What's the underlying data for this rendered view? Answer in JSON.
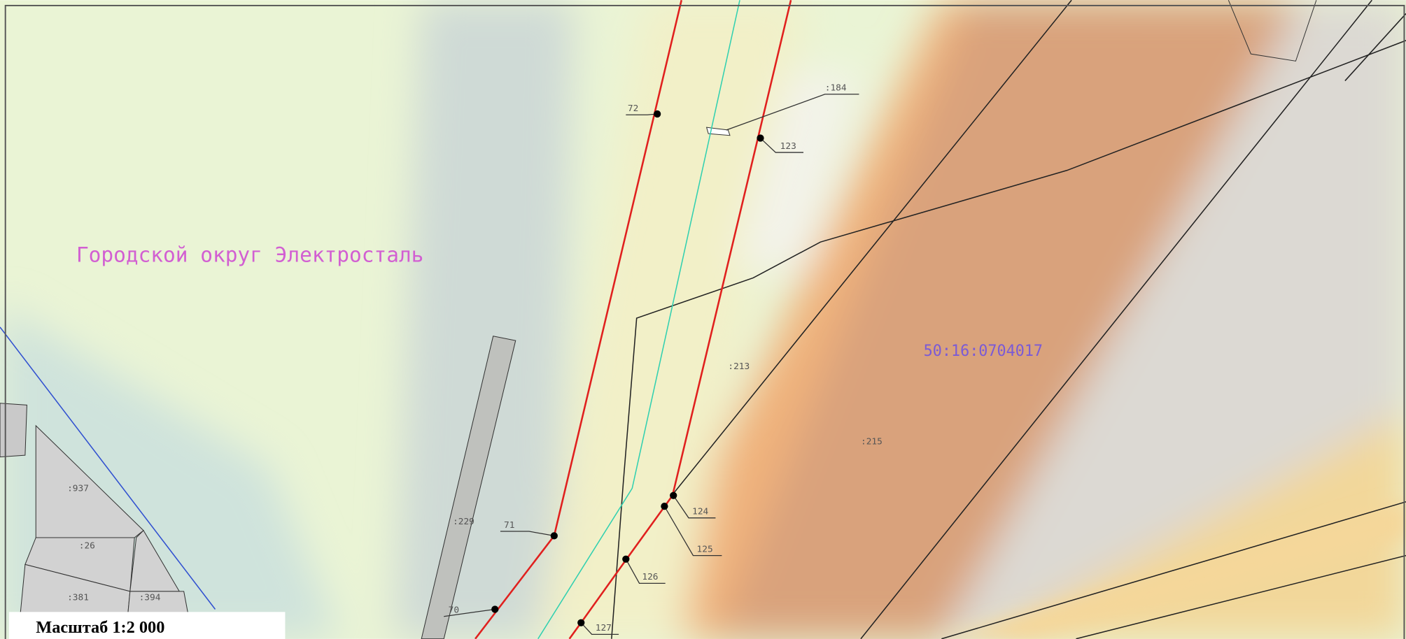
{
  "map": {
    "district": "Городской округ Электросталь",
    "quarter": "50:16:0704017",
    "parcels": [
      ":184",
      ":213",
      ":215",
      ":229",
      ":937",
      ":26",
      ":381",
      ":394"
    ],
    "points": [
      "72",
      "123",
      "124",
      "125",
      "126",
      "127",
      "71",
      "70"
    ],
    "scale": "Масштаб 1:2 000"
  }
}
